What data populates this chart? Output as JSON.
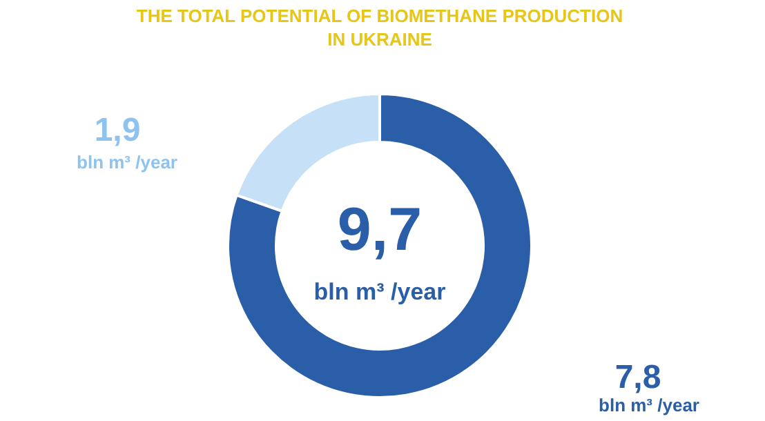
{
  "chart_data": {
    "type": "donut",
    "title": "THE TOTAL POTENTIAL OF BIOMETHANE PRODUCTION\nIN UKRAINE",
    "categories": [
      null,
      null
    ],
    "values": [
      7.8,
      1.9
    ],
    "colors": [
      "#2a5ea8",
      "#c5e0f7"
    ],
    "value_labels": [
      "7,8",
      "1,9"
    ],
    "annotations": [
      "9,7",
      "bln m³ /year",
      "bln m³ /year",
      "bln m³ /year"
    ]
  }
}
